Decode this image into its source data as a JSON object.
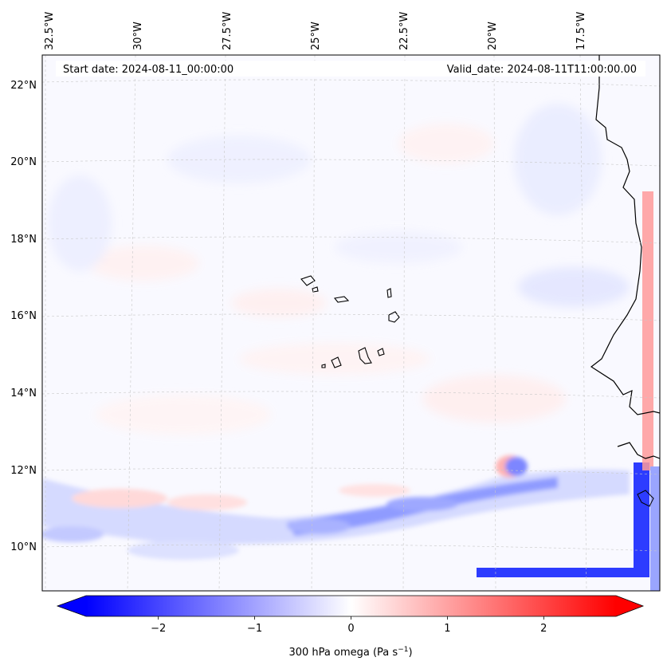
{
  "map": {
    "start_date": "Start date: 2024-08-11_00:00:00",
    "valid_date": "Valid_date: 2024-08-11T11:00:00.00",
    "lon_labels": [
      "32.5°W",
      "30°W",
      "27.5°W",
      "25°W",
      "22.5°W",
      "20°W",
      "17.5°W"
    ],
    "lat_labels": [
      "22°N",
      "20°N",
      "18°N",
      "16°N",
      "14°N",
      "12°N",
      "10°N"
    ],
    "variable": "300 hPa omega",
    "units": "Pa s",
    "units_exponent": "−1"
  },
  "colorbar": {
    "min": -2.75,
    "max": 2.75,
    "ticks": [
      -2,
      -1,
      0,
      1,
      2
    ],
    "tick_labels": [
      "−2",
      "−1",
      "0",
      "1",
      "2"
    ],
    "low_color": "#0000ff",
    "mid_color": "#ffffff",
    "high_color": "#ff0000"
  }
}
